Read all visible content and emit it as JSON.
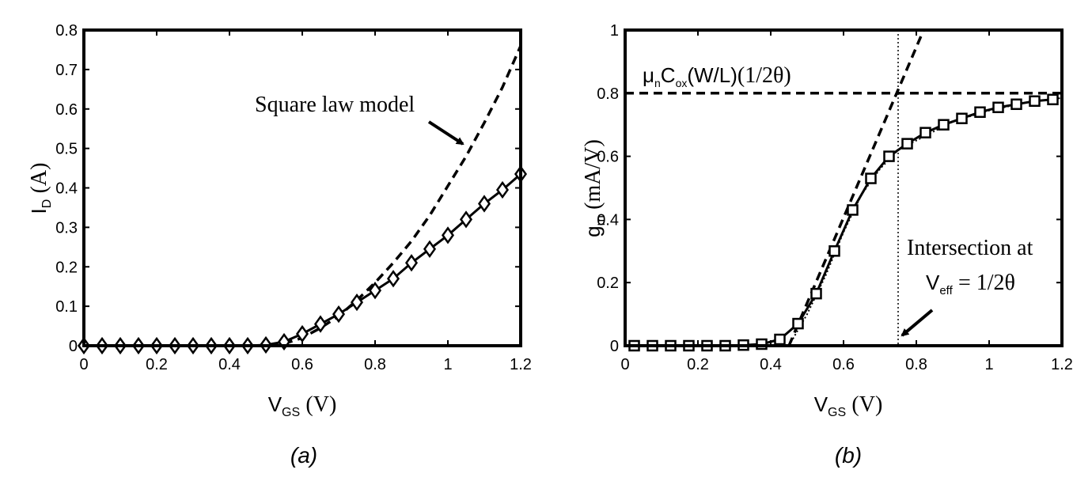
{
  "chart_data": [
    {
      "type": "line",
      "caption": "(a)",
      "xlabel_main": "V",
      "xlabel_sub": "GS",
      "xlabel_unit": "(V)",
      "ylabel_main": "I",
      "ylabel_sub": "D",
      "ylabel_unit": "(A)",
      "xlim": [
        0,
        1.2
      ],
      "ylim": [
        0,
        0.8
      ],
      "xticks": [
        0,
        0.2,
        0.4,
        0.6,
        0.8,
        1,
        1.2
      ],
      "xtick_labels": [
        "0",
        "0.2",
        "0.4",
        "0.6",
        "0.8",
        "1",
        "1.2"
      ],
      "yticks": [
        0,
        0.1,
        0.2,
        0.3,
        0.4,
        0.5,
        0.6,
        0.7,
        0.8
      ],
      "ytick_labels": [
        "0",
        "0.1",
        "0.2",
        "0.3",
        "0.4",
        "0.5",
        "0.6",
        "0.7",
        "0.8"
      ],
      "annotation": "Square law model",
      "series": [
        {
          "style": "solid-diamond",
          "x": [
            0,
            0.05,
            0.1,
            0.15,
            0.2,
            0.25,
            0.3,
            0.35,
            0.4,
            0.45,
            0.5,
            0.55,
            0.6,
            0.65,
            0.7,
            0.75,
            0.8,
            0.85,
            0.9,
            0.95,
            1.0,
            1.05,
            1.1,
            1.15,
            1.2
          ],
          "y": [
            0,
            0,
            0,
            0,
            0,
            0,
            0,
            0,
            0,
            0,
            0.002,
            0.01,
            0.03,
            0.055,
            0.08,
            0.11,
            0.14,
            0.17,
            0.21,
            0.245,
            0.28,
            0.32,
            0.36,
            0.395,
            0.435
          ]
        },
        {
          "style": "dashed",
          "x": [
            0.55,
            0.6,
            0.65,
            0.7,
            0.75,
            0.8,
            0.85,
            0.9,
            0.95,
            1.0,
            1.05,
            1.1,
            1.15,
            1.2
          ],
          "y": [
            0.005,
            0.02,
            0.045,
            0.075,
            0.115,
            0.16,
            0.21,
            0.265,
            0.33,
            0.405,
            0.48,
            0.565,
            0.655,
            0.76
          ]
        }
      ]
    },
    {
      "type": "line",
      "caption": "(b)",
      "xlabel_main": "V",
      "xlabel_sub": "GS",
      "xlabel_unit": "(V)",
      "ylabel_main": "g",
      "ylabel_sub": "m",
      "ylabel_unit": "(mA/V)",
      "xlim": [
        0,
        1.2
      ],
      "ylim": [
        0,
        1
      ],
      "xticks": [
        0,
        0.2,
        0.4,
        0.6,
        0.8,
        1,
        1.2
      ],
      "xtick_labels": [
        "0",
        "0.2",
        "0.4",
        "0.6",
        "0.8",
        "1",
        "1.2"
      ],
      "yticks": [
        0,
        0.2,
        0.4,
        0.6,
        0.8,
        1
      ],
      "ytick_labels": [
        "0",
        "0.2",
        "0.4",
        "0.6",
        "0.8",
        "1"
      ],
      "formula_mu": "μ",
      "formula_n": "n",
      "formula_C": "C",
      "formula_ox": "ox",
      "formula_rest": "(W/L)",
      "formula_tail": "(1/2θ)",
      "annotation_line1": "Intersection at",
      "annotation_V": "V",
      "annotation_sub": "eff",
      "annotation_eq": "= 1/2θ",
      "intersection_x": 0.75,
      "asymptote_y": 0.8,
      "series": [
        {
          "style": "solid-square",
          "x": [
            0.025,
            0.075,
            0.125,
            0.175,
            0.225,
            0.275,
            0.325,
            0.375,
            0.425,
            0.475,
            0.525,
            0.575,
            0.625,
            0.675,
            0.725,
            0.775,
            0.825,
            0.875,
            0.925,
            0.975,
            1.025,
            1.075,
            1.125,
            1.175
          ],
          "y": [
            0,
            0,
            0,
            0,
            0,
            0,
            0.002,
            0.005,
            0.02,
            0.07,
            0.165,
            0.3,
            0.43,
            0.53,
            0.6,
            0.64,
            0.675,
            0.7,
            0.72,
            0.74,
            0.755,
            0.765,
            0.775,
            0.78
          ]
        },
        {
          "style": "dashed",
          "x": [
            0.45,
            0.82
          ],
          "y": [
            0,
            1
          ]
        },
        {
          "style": "dotted",
          "x": [
            0.45,
            0.5,
            0.55,
            0.6,
            0.65,
            0.7,
            0.75,
            0.8,
            0.85,
            0.9,
            1.0,
            1.1,
            1.2
          ],
          "y": [
            0,
            0.1,
            0.22,
            0.36,
            0.48,
            0.56,
            0.62,
            0.65,
            0.68,
            0.71,
            0.745,
            0.77,
            0.785
          ]
        }
      ]
    }
  ]
}
